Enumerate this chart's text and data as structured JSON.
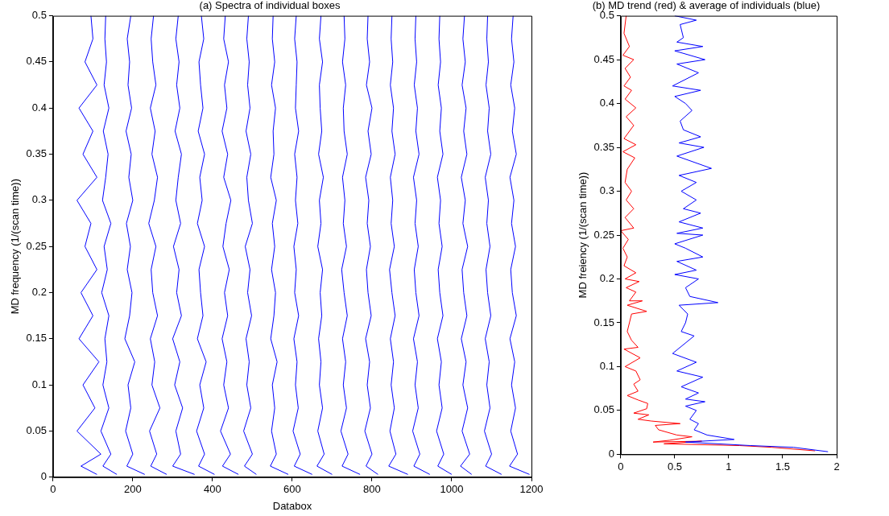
{
  "chart_data": [
    {
      "type": "line",
      "title": "(a) Spectra of individual boxes",
      "xlabel": "Databox",
      "ylabel": "MD frequency (1/(scan time))",
      "xlim": [
        0,
        1200
      ],
      "xticks": [
        0,
        200,
        400,
        600,
        800,
        1000,
        1200
      ],
      "ylim": [
        0,
        0.5
      ],
      "yticks": [
        0,
        0.05,
        0.1,
        0.15,
        0.2,
        0.25,
        0.3,
        0.35,
        0.4,
        0.45,
        0.5
      ],
      "marker": "none",
      "line_style": "solid",
      "series": [
        {
          "color": "#0000ff",
          "x": [
            110,
            70,
            120,
            60,
            105,
            75,
            115,
            65,
            100,
            70,
            110,
            80,
            95,
            60,
            110,
            75,
            100,
            65,
            110,
            80,
            100,
            95
          ],
          "values": [
            0.003,
            0.012,
            0.025,
            0.05,
            0.075,
            0.1,
            0.125,
            0.15,
            0.175,
            0.2,
            0.225,
            0.25,
            0.275,
            0.3,
            0.325,
            0.35,
            0.375,
            0.4,
            0.425,
            0.45,
            0.475,
            0.5
          ]
        },
        {
          "color": "#0000ff",
          "x": [
            160,
            125,
            145,
            120,
            140,
            125,
            135,
            130,
            140,
            122,
            136,
            128,
            145,
            124,
            132,
            138,
            126,
            140,
            128,
            134,
            130,
            132
          ],
          "values": [
            0.003,
            0.012,
            0.025,
            0.05,
            0.075,
            0.1,
            0.125,
            0.15,
            0.175,
            0.2,
            0.225,
            0.25,
            0.275,
            0.3,
            0.325,
            0.35,
            0.375,
            0.4,
            0.425,
            0.45,
            0.475,
            0.5
          ]
        },
        {
          "color": "#0000ff",
          "x": [
            230,
            185,
            200,
            182,
            195,
            188,
            205,
            180,
            192,
            198,
            186,
            194,
            184,
            200,
            190,
            196,
            183,
            197,
            188,
            192,
            186,
            195
          ],
          "values": [
            0.003,
            0.012,
            0.025,
            0.05,
            0.075,
            0.1,
            0.125,
            0.15,
            0.175,
            0.2,
            0.225,
            0.25,
            0.275,
            0.3,
            0.325,
            0.35,
            0.375,
            0.4,
            0.425,
            0.45,
            0.475,
            0.5
          ]
        },
        {
          "color": "#0000ff",
          "x": [
            285,
            245,
            260,
            242,
            268,
            248,
            255,
            244,
            262,
            250,
            246,
            258,
            240,
            254,
            262,
            248,
            256,
            244,
            258,
            250,
            246,
            252
          ],
          "values": [
            0.003,
            0.012,
            0.025,
            0.05,
            0.075,
            0.1,
            0.125,
            0.15,
            0.175,
            0.2,
            0.225,
            0.25,
            0.275,
            0.3,
            0.325,
            0.35,
            0.375,
            0.4,
            0.425,
            0.45,
            0.475,
            0.5
          ]
        },
        {
          "color": "#0000ff",
          "x": [
            355,
            300,
            320,
            308,
            325,
            305,
            318,
            300,
            322,
            310,
            316,
            302,
            320,
            308,
            314,
            322,
            306,
            318,
            310,
            316,
            308,
            314
          ],
          "values": [
            0.003,
            0.012,
            0.025,
            0.05,
            0.075,
            0.1,
            0.125,
            0.15,
            0.175,
            0.2,
            0.225,
            0.25,
            0.275,
            0.3,
            0.325,
            0.35,
            0.375,
            0.4,
            0.425,
            0.45,
            0.475,
            0.5
          ]
        },
        {
          "color": "#0000ff",
          "x": [
            405,
            365,
            380,
            360,
            378,
            368,
            384,
            362,
            376,
            370,
            366,
            380,
            362,
            374,
            368,
            380,
            364,
            376,
            370,
            366,
            378,
            372
          ],
          "values": [
            0.003,
            0.012,
            0.025,
            0.05,
            0.075,
            0.1,
            0.125,
            0.15,
            0.175,
            0.2,
            0.225,
            0.25,
            0.275,
            0.3,
            0.325,
            0.35,
            0.375,
            0.4,
            0.425,
            0.45,
            0.475,
            0.5
          ]
        },
        {
          "color": "#0000ff",
          "x": [
            465,
            425,
            445,
            420,
            440,
            428,
            436,
            424,
            438,
            430,
            442,
            426,
            434,
            446,
            428,
            438,
            424,
            436,
            430,
            440,
            428,
            432
          ],
          "values": [
            0.003,
            0.012,
            0.025,
            0.05,
            0.075,
            0.1,
            0.125,
            0.15,
            0.175,
            0.2,
            0.225,
            0.25,
            0.275,
            0.3,
            0.325,
            0.35,
            0.375,
            0.4,
            0.425,
            0.45,
            0.475,
            0.5
          ]
        },
        {
          "color": "#0000ff",
          "x": [
            510,
            480,
            500,
            478,
            496,
            486,
            492,
            484,
            498,
            488,
            494,
            482,
            500,
            490,
            486,
            496,
            484,
            494,
            488,
            492,
            486,
            490
          ],
          "values": [
            0.003,
            0.012,
            0.025,
            0.05,
            0.075,
            0.1,
            0.125,
            0.15,
            0.175,
            0.2,
            0.225,
            0.25,
            0.275,
            0.3,
            0.325,
            0.35,
            0.375,
            0.4,
            0.425,
            0.45,
            0.475,
            0.5
          ]
        },
        {
          "color": "#0000ff",
          "x": [
            590,
            545,
            560,
            548,
            556,
            550,
            562,
            546,
            554,
            558,
            548,
            556,
            550,
            560,
            546,
            554,
            552,
            558,
            548,
            556,
            550,
            552
          ],
          "values": [
            0.003,
            0.012,
            0.025,
            0.05,
            0.075,
            0.1,
            0.125,
            0.15,
            0.175,
            0.2,
            0.225,
            0.25,
            0.275,
            0.3,
            0.325,
            0.35,
            0.375,
            0.4,
            0.425,
            0.45,
            0.475,
            0.5
          ]
        },
        {
          "color": "#0000ff",
          "x": [
            650,
            605,
            620,
            602,
            615,
            608,
            612,
            604,
            616,
            606,
            610,
            604,
            614,
            608,
            612,
            606,
            616,
            608,
            610,
            612,
            606,
            610
          ],
          "values": [
            0.003,
            0.012,
            0.025,
            0.05,
            0.075,
            0.1,
            0.125,
            0.15,
            0.175,
            0.2,
            0.225,
            0.25,
            0.275,
            0.3,
            0.325,
            0.35,
            0.375,
            0.4,
            0.425,
            0.45,
            0.475,
            0.5
          ]
        },
        {
          "color": "#0000ff",
          "x": [
            700,
            662,
            680,
            664,
            676,
            668,
            672,
            666,
            674,
            670,
            676,
            664,
            672,
            668,
            678,
            666,
            674,
            670,
            668,
            676,
            668,
            672
          ],
          "values": [
            0.003,
            0.012,
            0.025,
            0.05,
            0.075,
            0.1,
            0.125,
            0.15,
            0.175,
            0.2,
            0.225,
            0.25,
            0.275,
            0.3,
            0.325,
            0.35,
            0.375,
            0.4,
            0.425,
            0.45,
            0.475,
            0.5
          ]
        },
        {
          "color": "#0000ff",
          "x": [
            770,
            725,
            740,
            722,
            736,
            728,
            734,
            726,
            738,
            730,
            724,
            736,
            728,
            732,
            726,
            738,
            730,
            728,
            734,
            726,
            732,
            730
          ],
          "values": [
            0.003,
            0.012,
            0.025,
            0.05,
            0.075,
            0.1,
            0.125,
            0.15,
            0.175,
            0.2,
            0.225,
            0.25,
            0.275,
            0.3,
            0.325,
            0.35,
            0.375,
            0.4,
            0.425,
            0.45,
            0.475,
            0.5
          ]
        },
        {
          "color": "#0000ff",
          "x": [
            815,
            785,
            800,
            782,
            796,
            788,
            794,
            784,
            798,
            790,
            786,
            796,
            788,
            792,
            784,
            798,
            790,
            800,
            786,
            794,
            788,
            790
          ],
          "values": [
            0.003,
            0.012,
            0.025,
            0.05,
            0.075,
            0.1,
            0.125,
            0.15,
            0.175,
            0.2,
            0.225,
            0.25,
            0.275,
            0.3,
            0.325,
            0.35,
            0.375,
            0.4,
            0.425,
            0.45,
            0.475,
            0.5
          ]
        },
        {
          "color": "#0000ff",
          "x": [
            890,
            842,
            860,
            845,
            856,
            848,
            854,
            846,
            858,
            850,
            844,
            856,
            848,
            852,
            846,
            858,
            850,
            854,
            846,
            852,
            848,
            850
          ],
          "values": [
            0.003,
            0.012,
            0.025,
            0.05,
            0.075,
            0.1,
            0.125,
            0.15,
            0.175,
            0.2,
            0.225,
            0.25,
            0.275,
            0.3,
            0.325,
            0.35,
            0.375,
            0.4,
            0.425,
            0.45,
            0.475,
            0.5
          ]
        },
        {
          "color": "#0000ff",
          "x": [
            945,
            905,
            920,
            902,
            916,
            908,
            914,
            904,
            918,
            910,
            906,
            916,
            908,
            912,
            904,
            918,
            910,
            914,
            906,
            912,
            908,
            910
          ],
          "values": [
            0.003,
            0.012,
            0.025,
            0.05,
            0.075,
            0.1,
            0.125,
            0.15,
            0.175,
            0.2,
            0.225,
            0.25,
            0.275,
            0.3,
            0.325,
            0.35,
            0.375,
            0.4,
            0.425,
            0.45,
            0.475,
            0.5
          ]
        },
        {
          "color": "#0000ff",
          "x": [
            1000,
            965,
            980,
            962,
            976,
            968,
            974,
            964,
            978,
            970,
            966,
            976,
            968,
            972,
            964,
            978,
            970,
            974,
            966,
            972,
            968,
            970
          ],
          "values": [
            0.003,
            0.012,
            0.025,
            0.05,
            0.075,
            0.1,
            0.125,
            0.15,
            0.175,
            0.2,
            0.225,
            0.25,
            0.275,
            0.3,
            0.325,
            0.35,
            0.375,
            0.4,
            0.425,
            0.45,
            0.475,
            0.5
          ]
        },
        {
          "color": "#0000ff",
          "x": [
            1050,
            1022,
            1045,
            1026,
            1040,
            1028,
            1036,
            1024,
            1038,
            1030,
            1026,
            1040,
            1028,
            1034,
            1024,
            1038,
            1030,
            1036,
            1026,
            1034,
            1028,
            1032
          ],
          "values": [
            0.003,
            0.012,
            0.025,
            0.05,
            0.075,
            0.1,
            0.125,
            0.15,
            0.175,
            0.2,
            0.225,
            0.25,
            0.275,
            0.3,
            0.325,
            0.35,
            0.375,
            0.4,
            0.425,
            0.45,
            0.475,
            0.5
          ]
        },
        {
          "color": "#0000ff",
          "x": [
            1125,
            1085,
            1100,
            1082,
            1096,
            1088,
            1094,
            1084,
            1098,
            1090,
            1086,
            1096,
            1088,
            1092,
            1084,
            1098,
            1090,
            1094,
            1086,
            1092,
            1088,
            1090
          ],
          "values": [
            0.003,
            0.012,
            0.025,
            0.05,
            0.075,
            0.1,
            0.125,
            0.15,
            0.175,
            0.2,
            0.225,
            0.25,
            0.275,
            0.3,
            0.325,
            0.35,
            0.375,
            0.4,
            0.425,
            0.45,
            0.475,
            0.5
          ]
        },
        {
          "color": "#0000ff",
          "x": [
            1195,
            1145,
            1165,
            1148,
            1160,
            1150,
            1158,
            1146,
            1162,
            1152,
            1148,
            1160,
            1150,
            1156,
            1146,
            1162,
            1152,
            1158,
            1148,
            1156,
            1150,
            1154
          ],
          "values": [
            0.003,
            0.012,
            0.025,
            0.05,
            0.075,
            0.1,
            0.125,
            0.15,
            0.175,
            0.2,
            0.225,
            0.25,
            0.275,
            0.3,
            0.325,
            0.35,
            0.375,
            0.4,
            0.425,
            0.45,
            0.475,
            0.5
          ]
        }
      ]
    },
    {
      "type": "line",
      "title": "(b) MD trend (red) & average of individuals (blue)",
      "ylabel": "MD freiency (1/(scan time))",
      "xlim": [
        0,
        2
      ],
      "xticks": [
        0,
        0.5,
        1,
        1.5,
        2
      ],
      "ylim": [
        0,
        0.5
      ],
      "yticks": [
        0,
        0.05,
        0.1,
        0.15,
        0.2,
        0.25,
        0.3,
        0.35,
        0.4,
        0.45,
        0.5
      ],
      "marker": "none",
      "line_style": "solid",
      "series": [
        {
          "color": "#ff0000",
          "x": [
            0.05,
            0.03,
            0.08,
            0.02,
            0.12,
            0.04,
            0.09,
            0.03,
            0.1,
            0.04,
            0.14,
            0.05,
            0.12,
            0.03,
            0.14,
            0.02,
            0.13,
            0.06,
            0.04,
            0.1,
            0.05,
            0.12,
            0.04,
            0.12,
            0.0,
            0.07,
            0.02,
            0.06,
            0.03,
            0.14,
            0.04,
            0.17,
            0.05,
            0.14,
            0.08,
            0.2,
            0.06,
            0.24,
            0.1,
            0.08,
            0.06,
            0.1,
            0.16,
            0.03,
            0.18,
            0.04,
            0.14,
            0.18,
            0.12,
            0.16,
            0.06,
            0.16,
            0.25,
            0.24,
            0.12,
            0.26,
            0.16,
            0.28,
            0.55,
            0.32,
            0.35,
            0.52,
            0.66,
            0.45,
            0.3,
            0.75,
            0.4,
            1.1,
            1.4,
            1.8
          ],
          "values": [
            0.5,
            0.48,
            0.465,
            0.455,
            0.45,
            0.44,
            0.43,
            0.42,
            0.415,
            0.405,
            0.395,
            0.385,
            0.375,
            0.36,
            0.353,
            0.345,
            0.338,
            0.325,
            0.31,
            0.3,
            0.29,
            0.28,
            0.27,
            0.258,
            0.255,
            0.245,
            0.235,
            0.225,
            0.215,
            0.207,
            0.2,
            0.197,
            0.19,
            0.185,
            0.175,
            0.175,
            0.17,
            0.163,
            0.16,
            0.15,
            0.14,
            0.13,
            0.122,
            0.12,
            0.11,
            0.1,
            0.095,
            0.085,
            0.08,
            0.072,
            0.067,
            0.062,
            0.058,
            0.052,
            0.047,
            0.045,
            0.04,
            0.038,
            0.035,
            0.033,
            0.028,
            0.022,
            0.02,
            0.016,
            0.014,
            0.015,
            0.012,
            0.01,
            0.008,
            0.004
          ]
        },
        {
          "color": "#0000ff",
          "x": [
            0.5,
            0.7,
            0.55,
            0.58,
            0.52,
            0.76,
            0.5,
            0.78,
            0.52,
            0.72,
            0.48,
            0.74,
            0.5,
            0.6,
            0.66,
            0.55,
            0.58,
            0.74,
            0.54,
            0.77,
            0.52,
            0.84,
            0.54,
            0.7,
            0.56,
            0.7,
            0.58,
            0.74,
            0.54,
            0.76,
            0.52,
            0.76,
            0.5,
            0.6,
            0.76,
            0.52,
            0.7,
            0.5,
            0.72,
            0.6,
            0.64,
            0.9,
            0.54,
            0.62,
            0.6,
            0.56,
            0.68,
            0.48,
            0.7,
            0.52,
            0.76,
            0.56,
            0.72,
            0.6,
            0.78,
            0.6,
            0.7,
            0.64,
            0.72,
            0.68,
            0.8,
            1.05,
            0.6,
            1.2,
            1.6,
            1.92
          ],
          "values": [
            0.5,
            0.495,
            0.49,
            0.475,
            0.47,
            0.465,
            0.46,
            0.45,
            0.445,
            0.435,
            0.42,
            0.415,
            0.408,
            0.4,
            0.392,
            0.38,
            0.37,
            0.362,
            0.355,
            0.35,
            0.34,
            0.326,
            0.318,
            0.31,
            0.3,
            0.29,
            0.28,
            0.275,
            0.265,
            0.258,
            0.252,
            0.25,
            0.24,
            0.235,
            0.225,
            0.22,
            0.21,
            0.205,
            0.2,
            0.19,
            0.18,
            0.173,
            0.17,
            0.16,
            0.15,
            0.14,
            0.135,
            0.115,
            0.105,
            0.095,
            0.088,
            0.077,
            0.07,
            0.063,
            0.06,
            0.055,
            0.05,
            0.04,
            0.035,
            0.028,
            0.022,
            0.017,
            0.014,
            0.01,
            0.008,
            0.003
          ]
        }
      ]
    }
  ]
}
